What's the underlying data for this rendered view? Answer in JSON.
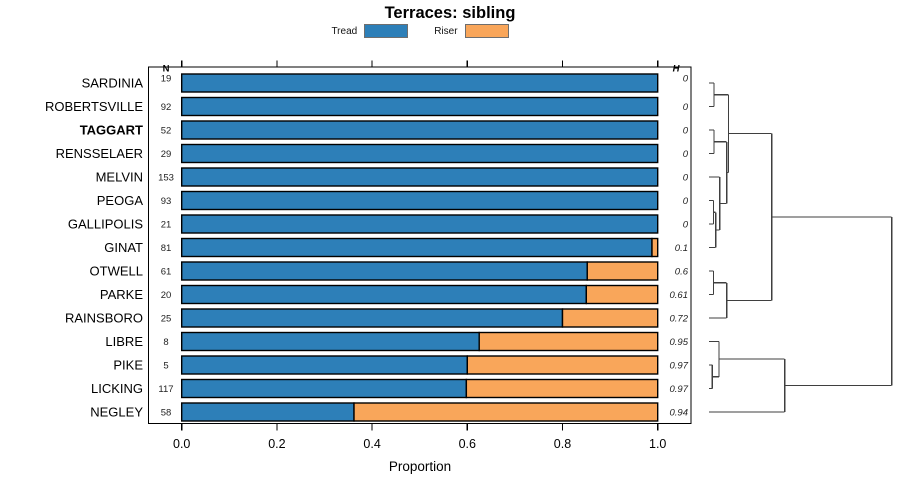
{
  "title": "Terraces: sibling",
  "axis": {
    "label": "Proportion",
    "ticks": [
      "0.0",
      "0.2",
      "0.4",
      "0.6",
      "0.8",
      "1.0"
    ],
    "tick_values": [
      0,
      0.2,
      0.4,
      0.6,
      0.8,
      1.0
    ]
  },
  "columns": {
    "n_header": "N",
    "h_header": "H"
  },
  "chart_data": {
    "type": "bar",
    "stacked": true,
    "orientation": "horizontal",
    "xlim": [
      0,
      1
    ],
    "xlabel": "Proportion",
    "title": "Terraces: sibling",
    "series": [
      {
        "name": "Tread",
        "color": "#2D7FB8"
      },
      {
        "name": "Riser",
        "color": "#F9A65A"
      }
    ],
    "rows": [
      {
        "site": "SARDINIA",
        "n": 19,
        "tread": 1.0,
        "riser": 0.0,
        "h": "0",
        "bold": false
      },
      {
        "site": "ROBERTSVILLE",
        "n": 92,
        "tread": 1.0,
        "riser": 0.0,
        "h": "0",
        "bold": false
      },
      {
        "site": "TAGGART",
        "n": 52,
        "tread": 1.0,
        "riser": 0.0,
        "h": "0",
        "bold": true
      },
      {
        "site": "RENSSELAER",
        "n": 29,
        "tread": 1.0,
        "riser": 0.0,
        "h": "0",
        "bold": false
      },
      {
        "site": "MELVIN",
        "n": 153,
        "tread": 1.0,
        "riser": 0.0,
        "h": "0",
        "bold": false
      },
      {
        "site": "PEOGA",
        "n": 93,
        "tread": 1.0,
        "riser": 0.0,
        "h": "0",
        "bold": false
      },
      {
        "site": "GALLIPOLIS",
        "n": 21,
        "tread": 1.0,
        "riser": 0.0,
        "h": "0",
        "bold": false
      },
      {
        "site": "GINAT",
        "n": 81,
        "tread": 0.988,
        "riser": 0.012,
        "h": "0.1",
        "bold": false
      },
      {
        "site": "OTWELL",
        "n": 61,
        "tread": 0.852,
        "riser": 0.148,
        "h": "0.6",
        "bold": false
      },
      {
        "site": "PARKE",
        "n": 20,
        "tread": 0.85,
        "riser": 0.15,
        "h": "0.61",
        "bold": false
      },
      {
        "site": "RAINSBORO",
        "n": 25,
        "tread": 0.8,
        "riser": 0.2,
        "h": "0.72",
        "bold": false
      },
      {
        "site": "LIBRE",
        "n": 8,
        "tread": 0.625,
        "riser": 0.375,
        "h": "0.95",
        "bold": false
      },
      {
        "site": "PIKE",
        "n": 5,
        "tread": 0.6,
        "riser": 0.4,
        "h": "0.97",
        "bold": false
      },
      {
        "site": "LICKING",
        "n": 117,
        "tread": 0.598,
        "riser": 0.402,
        "h": "0.97",
        "bold": false
      },
      {
        "site": "NEGLEY",
        "n": 58,
        "tread": 0.362,
        "riser": 0.638,
        "h": "0.94",
        "bold": false
      }
    ],
    "dendrogram": {
      "note": "heights normalized 0-1 of dendrogram width; L#=leaf row index, M#=merge index",
      "merges": [
        {
          "a": "L0",
          "b": "L1",
          "h": 0.0274
        },
        {
          "a": "L2",
          "b": "L3",
          "h": 0.0274
        },
        {
          "a": "L5",
          "b": "L6",
          "h": 0.0246
        },
        {
          "a": "M2",
          "b": "L7",
          "h": 0.0367
        },
        {
          "a": "L4",
          "b": "M3",
          "h": 0.0586
        },
        {
          "a": "M1",
          "b": "M4",
          "h": 0.0969
        },
        {
          "a": "M0",
          "b": "M5",
          "h": 0.1067
        },
        {
          "a": "L8",
          "b": "L9",
          "h": 0.0241
        },
        {
          "a": "M7",
          "b": "L10",
          "h": 0.0969
        },
        {
          "a": "M6",
          "b": "M8",
          "h": 0.3432
        },
        {
          "a": "L12",
          "b": "L13",
          "h": 0.0181
        },
        {
          "a": "L11",
          "b": "M10",
          "h": 0.0547
        },
        {
          "a": "M11",
          "b": "L14",
          "h": 0.4143
        },
        {
          "a": "M9",
          "b": "M12",
          "h": 1.0
        }
      ]
    }
  }
}
